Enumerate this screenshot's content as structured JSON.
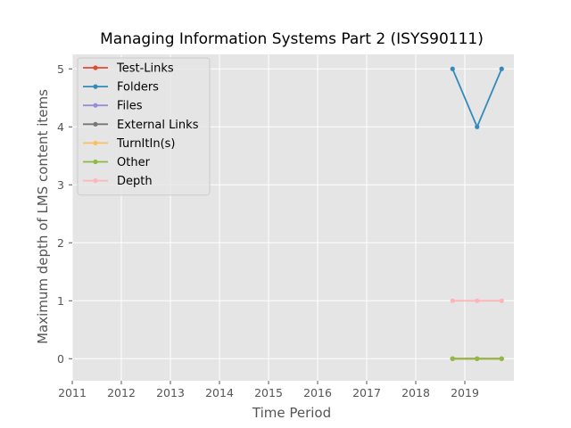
{
  "chart_data": {
    "type": "line",
    "title": "Managing Information Systems Part 2 (ISYS90111)",
    "xlabel": "Time Period",
    "ylabel": "Maximum depth of LMS content items",
    "xlim": [
      2011,
      2020.0
    ],
    "ylim": [
      -0.38,
      5.25
    ],
    "xticks": [
      2011,
      2012,
      2013,
      2014,
      2015,
      2016,
      2017,
      2018,
      2019
    ],
    "yticks": [
      0,
      1,
      2,
      3,
      4,
      5
    ],
    "grid": true,
    "legend_position": "top-left",
    "x": [
      2018.75,
      2019.25,
      2019.75
    ],
    "series": [
      {
        "name": "Test-Links",
        "color": "#E24A33",
        "values": [
          0,
          0,
          0
        ]
      },
      {
        "name": "Folders",
        "color": "#348ABD",
        "values": [
          5,
          4,
          5
        ]
      },
      {
        "name": "Files",
        "color": "#988ED5",
        "values": [
          0,
          0,
          0
        ]
      },
      {
        "name": "External Links",
        "color": "#777777",
        "values": [
          0,
          0,
          0
        ]
      },
      {
        "name": "TurnItIn(s)",
        "color": "#FBC15E",
        "values": [
          0,
          0,
          0
        ]
      },
      {
        "name": "Other",
        "color": "#8EBA42",
        "values": [
          0,
          0,
          0
        ]
      },
      {
        "name": "Depth",
        "color": "#FFB5B8",
        "values": [
          1,
          1,
          1
        ]
      }
    ]
  }
}
